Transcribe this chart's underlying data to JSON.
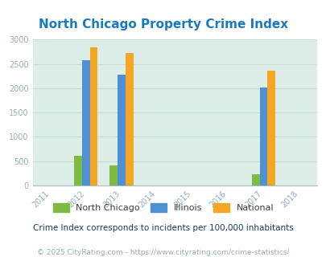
{
  "title": "North Chicago Property Crime Index",
  "years": [
    2011,
    2012,
    2013,
    2014,
    2015,
    2016,
    2017,
    2018
  ],
  "bar_data": {
    "2012": {
      "north_chicago": 610,
      "illinois": 2580,
      "national": 2850
    },
    "2013": {
      "north_chicago": 410,
      "illinois": 2280,
      "national": 2730
    },
    "2017": {
      "north_chicago": 230,
      "illinois": 2020,
      "national": 2360
    }
  },
  "colors": {
    "north_chicago": "#7dbb42",
    "illinois": "#4d90d4",
    "national": "#f5a623"
  },
  "ylim": [
    0,
    3000
  ],
  "yticks": [
    0,
    500,
    1000,
    1500,
    2000,
    2500,
    3000
  ],
  "background_color": "#ddeee8",
  "title_color": "#1a7abf",
  "title_fontsize": 11,
  "legend_labels": [
    "North Chicago",
    "Illinois",
    "National"
  ],
  "footnote": "Crime Index corresponds to incidents per 100,000 inhabitants",
  "copyright": "© 2025 CityRating.com - https://www.cityrating.com/crime-statistics/",
  "bar_width": 0.22,
  "grid_color": "#c8ddd8",
  "tick_label_color": "#9aacb8",
  "footnote_color": "#1a3a5c",
  "copyright_color": "#9aacb8"
}
